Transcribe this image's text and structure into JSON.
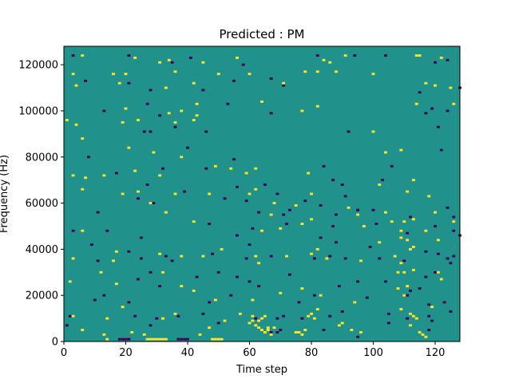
{
  "chart_data": {
    "type": "heatmap",
    "title": "Predicted : PM",
    "xlabel": "Time step",
    "ylabel": "Frequency (Hz)",
    "xlim": [
      0,
      128
    ],
    "ylim": [
      0,
      128000
    ],
    "x_ticks": [
      0,
      20,
      40,
      60,
      80,
      100,
      120
    ],
    "x_tick_labels": [
      "0",
      "20",
      "40",
      "60",
      "80",
      "100",
      "120"
    ],
    "y_ticks": [
      0,
      20000,
      40000,
      60000,
      80000,
      100000,
      120000
    ],
    "y_tick_labels": [
      "0",
      "20000",
      "40000",
      "60000",
      "80000",
      "100000",
      "120000"
    ],
    "colormap": "viridis",
    "colors": {
      "background": "#21918c",
      "low": "#440154",
      "high": "#fde725"
    },
    "grid": false,
    "legend": "none",
    "dark_cells": [
      [
        3,
        124000
      ],
      [
        21,
        124000
      ],
      [
        35,
        121000
      ],
      [
        41,
        123000
      ],
      [
        58,
        120000
      ],
      [
        82,
        124000
      ],
      [
        94,
        124000
      ],
      [
        104,
        124000
      ],
      [
        120,
        121000
      ],
      [
        124,
        122000
      ],
      [
        7,
        113000
      ],
      [
        21,
        112000
      ],
      [
        28,
        109000
      ],
      [
        45,
        109000
      ],
      [
        55,
        113000
      ],
      [
        67,
        114000
      ],
      [
        71,
        111000
      ],
      [
        115,
        108000
      ],
      [
        128,
        110000
      ],
      [
        13,
        100000
      ],
      [
        27,
        103000
      ],
      [
        31,
        98000
      ],
      [
        53,
        103000
      ],
      [
        67,
        99000
      ],
      [
        117,
        99000
      ],
      [
        119,
        101000
      ],
      [
        124,
        100000
      ],
      [
        26,
        91000
      ],
      [
        28,
        91000
      ],
      [
        36,
        93000
      ],
      [
        46,
        91000
      ],
      [
        92,
        91000
      ],
      [
        121,
        93000
      ],
      [
        8,
        80000
      ],
      [
        40,
        84000
      ],
      [
        55,
        79000
      ],
      [
        84,
        76000
      ],
      [
        106,
        76000
      ],
      [
        122,
        83000
      ],
      [
        17,
        73000
      ],
      [
        27,
        68000
      ],
      [
        32,
        75000
      ],
      [
        46,
        75000
      ],
      [
        56,
        67000
      ],
      [
        65,
        68000
      ],
      [
        69,
        64000
      ],
      [
        87,
        70000
      ],
      [
        90,
        68000
      ],
      [
        91,
        63000
      ],
      [
        103,
        70000
      ],
      [
        11,
        56000
      ],
      [
        24,
        62000
      ],
      [
        29,
        60000
      ],
      [
        39,
        65000
      ],
      [
        52,
        62000
      ],
      [
        59,
        61000
      ],
      [
        63,
        56000
      ],
      [
        71,
        55000
      ],
      [
        73,
        57000
      ],
      [
        78,
        61000
      ],
      [
        83,
        59000
      ],
      [
        88,
        55000
      ],
      [
        95,
        57000
      ],
      [
        100,
        57000
      ],
      [
        112,
        54000
      ],
      [
        124,
        58000
      ],
      [
        126,
        54000
      ],
      [
        3,
        48000
      ],
      [
        14,
        48000
      ],
      [
        25,
        45000
      ],
      [
        47,
        51000
      ],
      [
        56,
        46000
      ],
      [
        61,
        49000
      ],
      [
        72,
        51000
      ],
      [
        83,
        45000
      ],
      [
        87,
        50000
      ],
      [
        101,
        51000
      ],
      [
        111,
        47000
      ],
      [
        120,
        50000
      ],
      [
        126,
        48000
      ],
      [
        128,
        46000
      ],
      [
        9,
        42000
      ],
      [
        11,
        35000
      ],
      [
        21,
        39000
      ],
      [
        25,
        36000
      ],
      [
        33,
        37000
      ],
      [
        35,
        35000
      ],
      [
        48,
        38000
      ],
      [
        59,
        36000
      ],
      [
        60,
        42000
      ],
      [
        67,
        37000
      ],
      [
        81,
        36000
      ],
      [
        86,
        37000
      ],
      [
        88,
        43000
      ],
      [
        91,
        36000
      ],
      [
        99,
        41000
      ],
      [
        102,
        36000
      ],
      [
        110,
        35000
      ],
      [
        117,
        39000
      ],
      [
        121,
        38000
      ],
      [
        124,
        36000
      ],
      [
        125,
        34000
      ],
      [
        126,
        37000
      ],
      [
        24,
        27000
      ],
      [
        28,
        30000
      ],
      [
        31,
        24000
      ],
      [
        43,
        28000
      ],
      [
        50,
        30000
      ],
      [
        56,
        28000
      ],
      [
        60,
        26000
      ],
      [
        73,
        29000
      ],
      [
        89,
        24000
      ],
      [
        95,
        26000
      ],
      [
        104,
        26000
      ],
      [
        112,
        22000
      ],
      [
        115,
        23000
      ],
      [
        117,
        28000
      ],
      [
        120,
        30000
      ],
      [
        10,
        18000
      ],
      [
        13,
        20000
      ],
      [
        21,
        17000
      ],
      [
        47,
        17000
      ],
      [
        54,
        20000
      ],
      [
        63,
        24000
      ],
      [
        76,
        17000
      ],
      [
        81,
        20000
      ],
      [
        98,
        19000
      ],
      [
        111,
        20000
      ],
      [
        118,
        16000
      ],
      [
        123,
        17000
      ],
      [
        125,
        13000
      ],
      [
        2,
        11000
      ],
      [
        23,
        11000
      ],
      [
        30,
        10000
      ],
      [
        37,
        11000
      ],
      [
        45,
        12000
      ],
      [
        62,
        10000
      ],
      [
        69,
        10000
      ],
      [
        71,
        11000
      ],
      [
        77,
        10000
      ],
      [
        86,
        11000
      ],
      [
        90,
        13000
      ],
      [
        105,
        12000
      ],
      [
        111,
        10000
      ],
      [
        118,
        11000
      ],
      [
        1,
        7000
      ],
      [
        28,
        7000
      ],
      [
        50,
        8000
      ],
      [
        67,
        4000
      ],
      [
        69,
        4000
      ],
      [
        70,
        5000
      ],
      [
        84,
        5000
      ],
      [
        95,
        2000
      ],
      [
        105,
        8000
      ],
      [
        118,
        5000
      ],
      [
        119,
        9000
      ],
      [
        18,
        1000
      ],
      [
        19,
        1000
      ],
      [
        20,
        1000
      ],
      [
        21,
        1000
      ],
      [
        37,
        1000
      ],
      [
        38,
        1000
      ],
      [
        39,
        1000
      ],
      [
        40,
        1000
      ]
    ],
    "bright_cells": [
      [
        6,
        124000
      ],
      [
        23,
        123000
      ],
      [
        31,
        121000
      ],
      [
        34,
        122000
      ],
      [
        45,
        121000
      ],
      [
        56,
        123000
      ],
      [
        84,
        122000
      ],
      [
        86,
        121000
      ],
      [
        91,
        124000
      ],
      [
        114,
        124000
      ],
      [
        115,
        124000
      ],
      [
        122,
        123000
      ],
      [
        3,
        116000
      ],
      [
        16,
        116000
      ],
      [
        20,
        116000
      ],
      [
        36,
        117000
      ],
      [
        50,
        116000
      ],
      [
        60,
        116000
      ],
      [
        78,
        117000
      ],
      [
        82,
        117000
      ],
      [
        88,
        117000
      ],
      [
        100,
        116000
      ],
      [
        4,
        111000
      ],
      [
        18,
        112000
      ],
      [
        33,
        110000
      ],
      [
        42,
        112000
      ],
      [
        71,
        112000
      ],
      [
        117,
        112000
      ],
      [
        120,
        111000
      ],
      [
        125,
        110000
      ],
      [
        43,
        103000
      ],
      [
        64,
        104000
      ],
      [
        82,
        102000
      ],
      [
        126,
        103000
      ],
      [
        20,
        101000
      ],
      [
        34,
        99000
      ],
      [
        38,
        100000
      ],
      [
        43,
        98000
      ],
      [
        77,
        100000
      ],
      [
        114,
        103000
      ],
      [
        1,
        96000
      ],
      [
        4,
        94000
      ],
      [
        19,
        95000
      ],
      [
        24,
        96000
      ],
      [
        36,
        95000
      ],
      [
        42,
        96000
      ],
      [
        100,
        91000
      ],
      [
        6,
        88000
      ],
      [
        21,
        84000
      ],
      [
        29,
        82000
      ],
      [
        38,
        80000
      ],
      [
        104,
        82000
      ],
      [
        109,
        83000
      ],
      [
        3,
        72000
      ],
      [
        7,
        71000
      ],
      [
        13,
        72000
      ],
      [
        23,
        74000
      ],
      [
        31,
        72000
      ],
      [
        49,
        76000
      ],
      [
        54,
        75000
      ],
      [
        59,
        73000
      ],
      [
        62,
        75000
      ],
      [
        79,
        73000
      ],
      [
        6,
        66000
      ],
      [
        19,
        64000
      ],
      [
        24,
        65000
      ],
      [
        36,
        64000
      ],
      [
        47,
        64000
      ],
      [
        60,
        64000
      ],
      [
        62,
        66000
      ],
      [
        68,
        60000
      ],
      [
        80,
        64000
      ],
      [
        102,
        68000
      ],
      [
        111,
        65000
      ],
      [
        113,
        70000
      ],
      [
        118,
        63000
      ],
      [
        28,
        60000
      ],
      [
        33,
        56000
      ],
      [
        67,
        55000
      ],
      [
        75,
        59000
      ],
      [
        80,
        53000
      ],
      [
        92,
        58000
      ],
      [
        95,
        55000
      ],
      [
        104,
        56000
      ],
      [
        106,
        52000
      ],
      [
        109,
        48000
      ],
      [
        110,
        52000
      ],
      [
        111,
        44000
      ],
      [
        112,
        40000
      ],
      [
        113,
        41000
      ],
      [
        120,
        56000
      ],
      [
        126,
        52000
      ],
      [
        6,
        48000
      ],
      [
        42,
        52000
      ],
      [
        64,
        48000
      ],
      [
        70,
        49000
      ],
      [
        77,
        51000
      ],
      [
        97,
        50000
      ],
      [
        102,
        43000
      ],
      [
        109,
        45000
      ],
      [
        113,
        53000
      ],
      [
        117,
        48000
      ],
      [
        121,
        44000
      ],
      [
        3,
        36000
      ],
      [
        16,
        35000
      ],
      [
        17,
        39000
      ],
      [
        31,
        38000
      ],
      [
        38,
        37000
      ],
      [
        45,
        37000
      ],
      [
        51,
        40000
      ],
      [
        62,
        37000
      ],
      [
        63,
        34000
      ],
      [
        72,
        37000
      ],
      [
        80,
        38000
      ],
      [
        82,
        40000
      ],
      [
        85,
        36000
      ],
      [
        96,
        35000
      ],
      [
        107,
        37000
      ],
      [
        108,
        30000
      ],
      [
        109,
        34000
      ],
      [
        110,
        30000
      ],
      [
        113,
        31000
      ],
      [
        121,
        30000
      ],
      [
        122,
        27000
      ],
      [
        2,
        26000
      ],
      [
        12,
        30000
      ],
      [
        17,
        25000
      ],
      [
        32,
        30000
      ],
      [
        38,
        24000
      ],
      [
        42,
        22000
      ],
      [
        49,
        18000
      ],
      [
        61,
        18000
      ],
      [
        70,
        21000
      ],
      [
        77,
        23000
      ],
      [
        83,
        20000
      ],
      [
        94,
        17000
      ],
      [
        108,
        23000
      ],
      [
        110,
        20000
      ],
      [
        111,
        24000
      ],
      [
        112,
        12000
      ],
      [
        114,
        10000
      ],
      [
        119,
        15000
      ],
      [
        3,
        11000
      ],
      [
        14,
        10000
      ],
      [
        19,
        15000
      ],
      [
        32,
        10000
      ],
      [
        36,
        12000
      ],
      [
        52,
        9000
      ],
      [
        57,
        12000
      ],
      [
        61,
        11000
      ],
      [
        63,
        9000
      ],
      [
        64,
        10000
      ],
      [
        65,
        11000
      ],
      [
        66,
        6000
      ],
      [
        68,
        6000
      ],
      [
        79,
        11000
      ],
      [
        80,
        12000
      ],
      [
        81,
        10000
      ],
      [
        82,
        14000
      ],
      [
        89,
        7000
      ],
      [
        90,
        8000
      ],
      [
        93,
        5000
      ],
      [
        109,
        14000
      ],
      [
        112,
        7000
      ],
      [
        113,
        11000
      ],
      [
        6,
        5000
      ],
      [
        13,
        3000
      ],
      [
        14,
        1000
      ],
      [
        22,
        4000
      ],
      [
        26,
        3000
      ],
      [
        27,
        1000
      ],
      [
        28,
        1000
      ],
      [
        29,
        1000
      ],
      [
        30,
        1000
      ],
      [
        31,
        1000
      ],
      [
        32,
        1000
      ],
      [
        33,
        1000
      ],
      [
        44,
        3000
      ],
      [
        47,
        6000
      ],
      [
        48,
        1000
      ],
      [
        49,
        1000
      ],
      [
        50,
        1000
      ],
      [
        51,
        1000
      ],
      [
        60,
        8000
      ],
      [
        61,
        9000
      ],
      [
        62,
        7000
      ],
      [
        63,
        6000
      ],
      [
        64,
        5000
      ],
      [
        65,
        4000
      ],
      [
        66,
        5000
      ],
      [
        67,
        3000
      ],
      [
        75,
        4000
      ],
      [
        76,
        4000
      ],
      [
        77,
        3000
      ],
      [
        78,
        5000
      ],
      [
        96,
        4000
      ],
      [
        115,
        4000
      ],
      [
        116,
        3000
      ],
      [
        117,
        2000
      ]
    ]
  }
}
